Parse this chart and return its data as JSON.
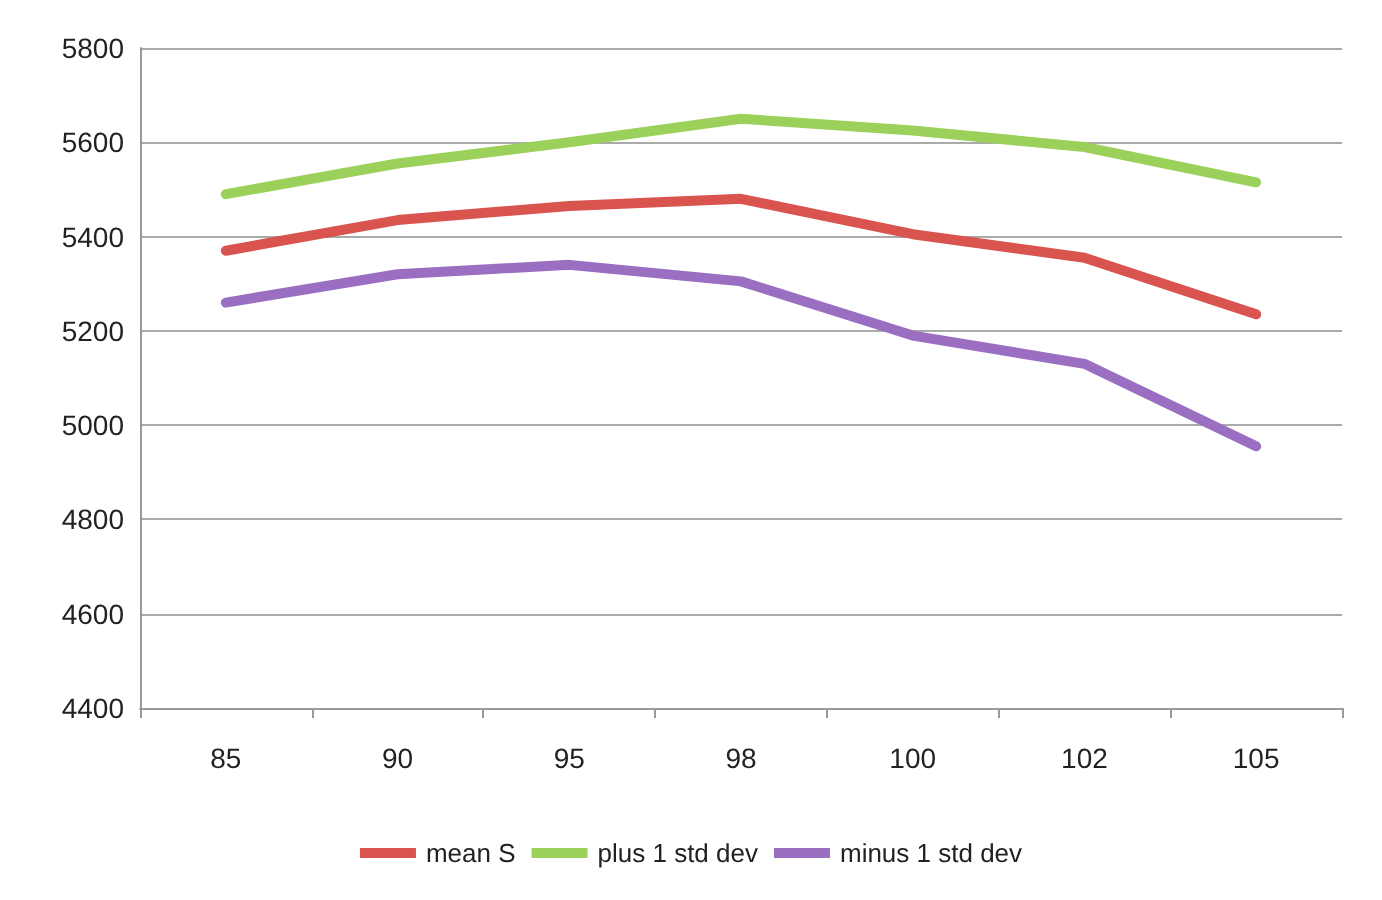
{
  "chart_data": {
    "type": "line",
    "categories": [
      "85",
      "90",
      "95",
      "98",
      "100",
      "102",
      "105"
    ],
    "series": [
      {
        "name": "mean S",
        "color": "#d9534f",
        "values": [
          5370,
          5435,
          5465,
          5480,
          5405,
          5355,
          5235
        ]
      },
      {
        "name": "plus 1 std dev",
        "color": "#9bd15a",
        "values": [
          5490,
          5555,
          5600,
          5650,
          5625,
          5590,
          5515
        ]
      },
      {
        "name": "minus 1 std dev",
        "color": "#9a6fc2",
        "values": [
          5260,
          5320,
          5340,
          5305,
          5190,
          5130,
          4955
        ]
      }
    ],
    "ylim": [
      4400,
      5800
    ],
    "yticks": [
      4400,
      4600,
      4800,
      5000,
      5200,
      5400,
      5600,
      5800
    ],
    "grid": "y",
    "legend": "bottom",
    "marker": "none",
    "line_style": "solid"
  }
}
